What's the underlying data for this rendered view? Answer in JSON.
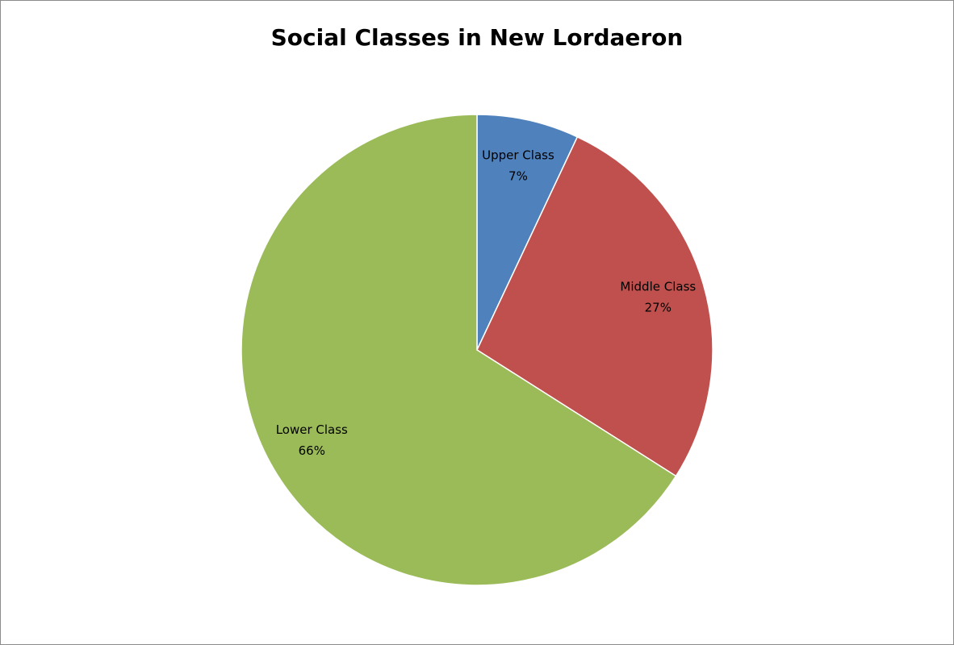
{
  "chart_data": {
    "type": "pie",
    "title": "Social Classes in New Lordaeron",
    "categories": [
      "Upper Class",
      "Middle Class",
      "Lower Class"
    ],
    "values": [
      7,
      27,
      66
    ],
    "value_labels": [
      "7%",
      "27%",
      "66%"
    ],
    "colors": [
      "#4f81bd",
      "#c0504d",
      "#9bbb59"
    ]
  }
}
